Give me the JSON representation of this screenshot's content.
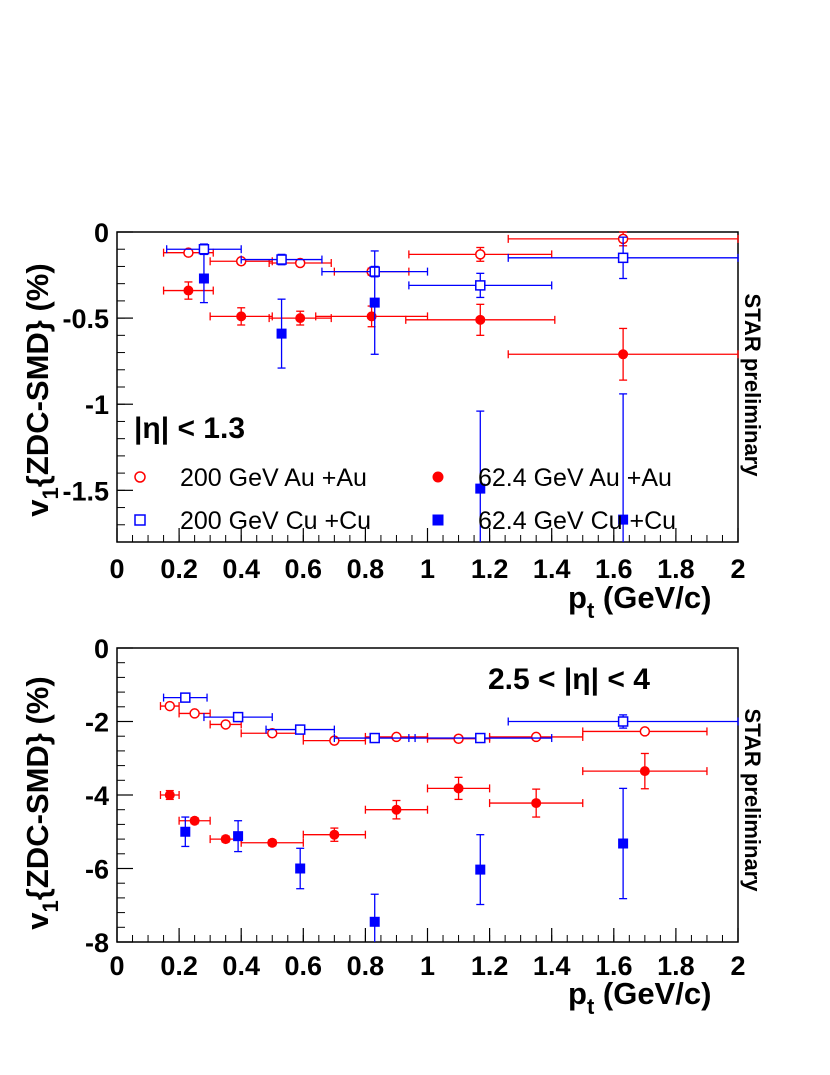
{
  "colors": {
    "red": "#ff0000",
    "blue": "#0000ff",
    "axis": "#000000"
  },
  "chart_data": [
    {
      "type": "scatter",
      "panel": "top",
      "xlabel_main": "p",
      "xlabel_sub": "t",
      "xlabel_units": " (GeV/c)",
      "ylabel_main": "v",
      "ylabel_sub": "1",
      "ylabel_rest": "{ZDC-SMD} (%)",
      "xlim": [
        0,
        2
      ],
      "ylim": [
        -1.8,
        0.0
      ],
      "x_ticks": [
        "0",
        "0.2",
        "0.4",
        "0.6",
        "0.8",
        "1",
        "1.2",
        "1.4",
        "1.6",
        "1.8",
        "2"
      ],
      "y_ticks": [
        "0",
        "-0.5",
        "-1",
        "-1.5"
      ],
      "y_tick_values": [
        0,
        -0.5,
        -1,
        -1.5
      ],
      "cut_label": "|η| < 1.3",
      "side_label": "STAR preliminary",
      "legend": [
        {
          "label": "200 GeV Au +Au",
          "color": "#ff0000",
          "marker": "circle-open"
        },
        {
          "label": "62.4 GeV Au +Au",
          "color": "#ff0000",
          "marker": "circle-filled"
        },
        {
          "label": "200 GeV Cu +Cu",
          "color": "#0000ff",
          "marker": "square-open"
        },
        {
          "label": "62.4 GeV Cu +Cu",
          "color": "#0000ff",
          "marker": "square-filled"
        }
      ],
      "series": [
        {
          "name": "200 GeV Au +Au",
          "color": "#ff0000",
          "marker": "circle-open",
          "points": [
            {
              "x": 0.23,
              "y": -0.12,
              "xerr": 0.08,
              "yerr": 0.015
            },
            {
              "x": 0.4,
              "y": -0.17,
              "xerr": 0.1,
              "yerr": 0.015
            },
            {
              "x": 0.59,
              "y": -0.18,
              "xerr": 0.1,
              "yerr": 0.015
            },
            {
              "x": 0.82,
              "y": -0.23,
              "xerr": 0.12,
              "yerr": 0.02
            },
            {
              "x": 1.17,
              "y": -0.13,
              "xerr": 0.23,
              "yerr": 0.04
            },
            {
              "x": 1.63,
              "y": -0.04,
              "xerr": 0.37,
              "yerr": 0.04
            }
          ]
        },
        {
          "name": "62.4 GeV Au +Au",
          "color": "#ff0000",
          "marker": "circle-filled",
          "points": [
            {
              "x": 0.23,
              "y": -0.34,
              "xerr": 0.08,
              "yerr": 0.05
            },
            {
              "x": 0.4,
              "y": -0.49,
              "xerr": 0.1,
              "yerr": 0.05
            },
            {
              "x": 0.59,
              "y": -0.5,
              "xerr": 0.1,
              "yerr": 0.04
            },
            {
              "x": 0.82,
              "y": -0.49,
              "xerr": 0.18,
              "yerr": 0.06
            },
            {
              "x": 1.17,
              "y": -0.51,
              "xerr": 0.24,
              "yerr": 0.09
            },
            {
              "x": 1.63,
              "y": -0.71,
              "xerr": 0.37,
              "yerr": 0.15
            }
          ]
        },
        {
          "name": "200 GeV Cu +Cu",
          "color": "#0000ff",
          "marker": "square-open",
          "points": [
            {
              "x": 0.28,
              "y": -0.1,
              "xerr": 0.12,
              "yerr": 0.03
            },
            {
              "x": 0.53,
              "y": -0.16,
              "xerr": 0.13,
              "yerr": 0.03
            },
            {
              "x": 0.83,
              "y": -0.23,
              "xerr": 0.17,
              "yerr": 0.03
            },
            {
              "x": 1.17,
              "y": -0.31,
              "xerr": 0.23,
              "yerr": 0.07
            },
            {
              "x": 1.63,
              "y": -0.15,
              "xerr": 0.37,
              "yerr": 0.12
            }
          ]
        },
        {
          "name": "62.4 GeV Cu +Cu",
          "color": "#0000ff",
          "marker": "square-filled",
          "points": [
            {
              "x": 0.28,
              "y": -0.27,
              "xerr": 0.0,
              "yerr": 0.14
            },
            {
              "x": 0.53,
              "y": -0.59,
              "xerr": 0.0,
              "yerr": 0.2
            },
            {
              "x": 0.83,
              "y": -0.41,
              "xerr": 0.0,
              "yerr": 0.3
            },
            {
              "x": 1.17,
              "y": -1.49,
              "xerr": 0.0,
              "yerr": 0.45
            },
            {
              "x": 1.63,
              "y": -1.67,
              "xerr": 0.0,
              "yerr": 0.73
            }
          ]
        }
      ]
    },
    {
      "type": "scatter",
      "panel": "bottom",
      "xlabel_main": "p",
      "xlabel_sub": "t",
      "xlabel_units": " (GeV/c)",
      "ylabel_main": "v",
      "ylabel_sub": "1",
      "ylabel_rest": "{ZDC-SMD} (%)",
      "xlim": [
        0,
        2
      ],
      "ylim": [
        -8,
        0
      ],
      "x_ticks": [
        "0",
        "0.2",
        "0.4",
        "0.6",
        "0.8",
        "1",
        "1.2",
        "1.4",
        "1.6",
        "1.8",
        "2"
      ],
      "y_ticks": [
        "0",
        "-2",
        "-4",
        "-6",
        "-8"
      ],
      "y_tick_values": [
        0,
        -2,
        -4,
        -6,
        -8
      ],
      "cut_label": "2.5 < |η| < 4",
      "side_label": "STAR preliminary",
      "series": [
        {
          "name": "200 GeV Au +Au",
          "color": "#ff0000",
          "marker": "circle-open",
          "points": [
            {
              "x": 0.17,
              "y": -1.58,
              "xerr": 0.03,
              "yerr": 0.06
            },
            {
              "x": 0.25,
              "y": -1.78,
              "xerr": 0.05,
              "yerr": 0.06
            },
            {
              "x": 0.35,
              "y": -2.08,
              "xerr": 0.05,
              "yerr": 0.06
            },
            {
              "x": 0.5,
              "y": -2.32,
              "xerr": 0.1,
              "yerr": 0.06
            },
            {
              "x": 0.7,
              "y": -2.52,
              "xerr": 0.1,
              "yerr": 0.06
            },
            {
              "x": 0.9,
              "y": -2.42,
              "xerr": 0.1,
              "yerr": 0.06
            },
            {
              "x": 1.1,
              "y": -2.47,
              "xerr": 0.1,
              "yerr": 0.06
            },
            {
              "x": 1.35,
              "y": -2.42,
              "xerr": 0.15,
              "yerr": 0.06
            },
            {
              "x": 1.7,
              "y": -2.27,
              "xerr": 0.2,
              "yerr": 0.08
            }
          ]
        },
        {
          "name": "62.4 GeV Au +Au",
          "color": "#ff0000",
          "marker": "circle-filled",
          "points": [
            {
              "x": 0.17,
              "y": -4.0,
              "xerr": 0.03,
              "yerr": 0.12
            },
            {
              "x": 0.25,
              "y": -4.7,
              "xerr": 0.05,
              "yerr": 0.08
            },
            {
              "x": 0.35,
              "y": -5.2,
              "xerr": 0.05,
              "yerr": 0.08
            },
            {
              "x": 0.5,
              "y": -5.3,
              "xerr": 0.1,
              "yerr": 0.08
            },
            {
              "x": 0.7,
              "y": -5.08,
              "xerr": 0.1,
              "yerr": 0.18
            },
            {
              "x": 0.9,
              "y": -4.4,
              "xerr": 0.1,
              "yerr": 0.25
            },
            {
              "x": 1.1,
              "y": -3.82,
              "xerr": 0.1,
              "yerr": 0.3
            },
            {
              "x": 1.35,
              "y": -4.22,
              "xerr": 0.15,
              "yerr": 0.38
            },
            {
              "x": 1.7,
              "y": -3.35,
              "xerr": 0.2,
              "yerr": 0.48
            }
          ]
        },
        {
          "name": "200 GeV Cu +Cu",
          "color": "#0000ff",
          "marker": "square-open",
          "points": [
            {
              "x": 0.22,
              "y": -1.35,
              "xerr": 0.07,
              "yerr": 0.05
            },
            {
              "x": 0.39,
              "y": -1.88,
              "xerr": 0.11,
              "yerr": 0.05
            },
            {
              "x": 0.59,
              "y": -2.22,
              "xerr": 0.11,
              "yerr": 0.05
            },
            {
              "x": 0.83,
              "y": -2.45,
              "xerr": 0.13,
              "yerr": 0.05
            },
            {
              "x": 1.17,
              "y": -2.45,
              "xerr": 0.23,
              "yerr": 0.07
            },
            {
              "x": 1.63,
              "y": -2.0,
              "xerr": 0.37,
              "yerr": 0.18
            }
          ]
        },
        {
          "name": "62.4 GeV Cu +Cu",
          "color": "#0000ff",
          "marker": "square-filled",
          "points": [
            {
              "x": 0.22,
              "y": -5.0,
              "xerr": 0.0,
              "yerr": 0.4
            },
            {
              "x": 0.39,
              "y": -5.12,
              "xerr": 0.0,
              "yerr": 0.42
            },
            {
              "x": 0.59,
              "y": -6.0,
              "xerr": 0.0,
              "yerr": 0.55
            },
            {
              "x": 0.83,
              "y": -7.45,
              "xerr": 0.0,
              "yerr": 0.75
            },
            {
              "x": 1.17,
              "y": -6.03,
              "xerr": 0.0,
              "yerr": 0.95
            },
            {
              "x": 1.63,
              "y": -5.32,
              "xerr": 0.0,
              "yerr": 1.5
            }
          ]
        }
      ]
    }
  ]
}
